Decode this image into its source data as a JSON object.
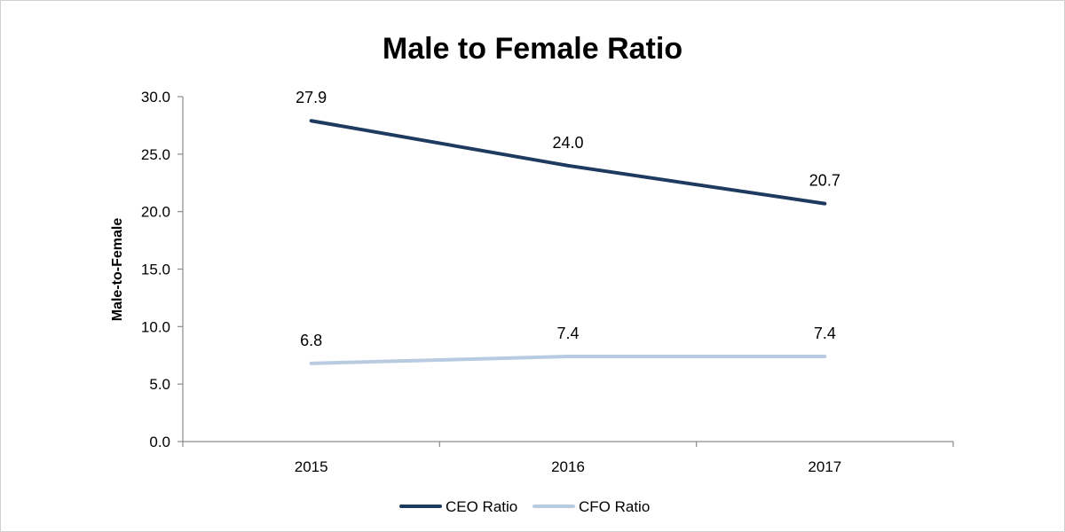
{
  "chart_data": {
    "type": "line",
    "title": "Male to Female Ratio",
    "ylabel": "Male-to-Female",
    "xlabel": "",
    "categories": [
      "2015",
      "2016",
      "2017"
    ],
    "ylim": [
      0,
      30
    ],
    "yticks": [
      "0.0",
      "5.0",
      "10.0",
      "15.0",
      "20.0",
      "25.0",
      "30.0"
    ],
    "grid": false,
    "legend_position": "bottom",
    "series": [
      {
        "name": "CEO Ratio",
        "color": "#1f3a5f",
        "values": [
          27.9,
          24.0,
          20.7
        ],
        "labels": [
          "27.9",
          "24.0",
          "20.7"
        ]
      },
      {
        "name": "CFO Ratio",
        "color": "#b9cbe0",
        "values": [
          6.8,
          7.4,
          7.4
        ],
        "labels": [
          "6.8",
          "7.4",
          "7.4"
        ]
      }
    ]
  }
}
